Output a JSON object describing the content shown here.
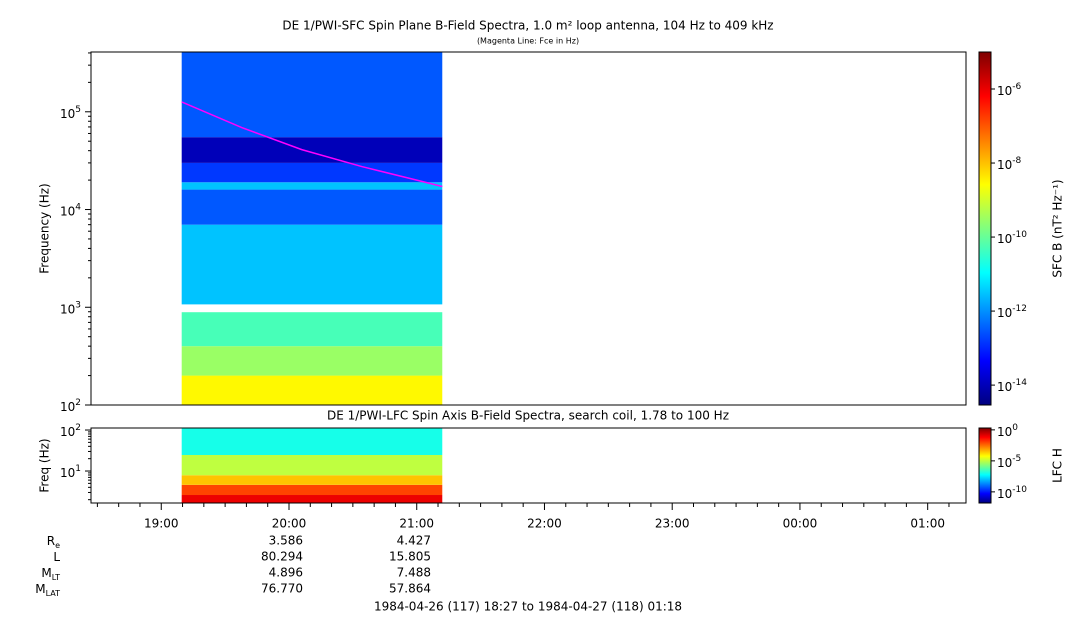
{
  "chart_data": [
    {
      "type": "spectrogram",
      "title": "DE 1/PWI-SFC  Spin Plane B-Field Spectra, 1.0 m² loop antenna, 104 Hz to 409 kHz",
      "subtitle": "(Magenta Line: Fce in Hz)",
      "ylabel": "Frequency (Hz)",
      "zlabel": "SFC B (nT² Hz⁻¹)",
      "xlim": [
        18.45,
        25.3
      ],
      "x": [
        19.16,
        21.2
      ],
      "ylim": [
        100,
        409000
      ],
      "log_y": true,
      "yticks": [
        {
          "value": 100,
          "label": "10",
          "exp": "2"
        },
        {
          "value": 1000,
          "label": "10",
          "exp": "3"
        },
        {
          "value": 10000,
          "label": "10",
          "exp": "4"
        },
        {
          "value": 100000,
          "label": "10",
          "exp": "5"
        }
      ],
      "zlim": [
        2.9e-15,
        1e-05
      ],
      "zticks": [
        {
          "value": 1e-14,
          "label": "10",
          "exp": "-14"
        },
        {
          "value": 1e-12,
          "label": "10",
          "exp": "-12"
        },
        {
          "value": 1e-10,
          "label": "10",
          "exp": "-10"
        },
        {
          "value": 1e-08,
          "label": "10",
          "exp": "-8"
        },
        {
          "value": 1e-06,
          "label": "10",
          "exp": "-6"
        }
      ],
      "bands": [
        {
          "f0": 100,
          "f1": 200,
          "z": 3e-09
        },
        {
          "f0": 200,
          "f1": 400,
          "z": 3e-10
        },
        {
          "f0": 400,
          "f1": 890,
          "z": 5e-11
        },
        {
          "f0": 1070,
          "f1": 7000,
          "z": 3e-12
        },
        {
          "f0": 7000,
          "f1": 16000,
          "z": 3e-13
        },
        {
          "f0": 16000,
          "f1": 19000,
          "z": 3e-12
        },
        {
          "f0": 19000,
          "f1": 30000,
          "z": 1.5e-13
        },
        {
          "f0": 30000,
          "f1": 55000,
          "z": 1e-14
        },
        {
          "f0": 55000,
          "f1": 409000,
          "z": 3e-13
        }
      ],
      "fce": {
        "color": "#ff00ff",
        "x": [
          19.16,
          19.63,
          20.1,
          20.57,
          21.0,
          21.2
        ],
        "values": [
          126000,
          69000,
          41000,
          27500,
          20000,
          17200
        ]
      }
    },
    {
      "type": "spectrogram",
      "title": "DE 1/PWI-LFC  Spin Axis B-Field Spectra, search coil, 1.78 to 100 Hz",
      "ylabel": "Freq (Hz)",
      "zlabel": "LFC H",
      "xlim": [
        18.45,
        25.3
      ],
      "x": [
        19.16,
        21.2
      ],
      "xticks": [
        {
          "value": 19,
          "label": "19:00"
        },
        {
          "value": 20,
          "label": "20:00"
        },
        {
          "value": 21,
          "label": "21:00"
        },
        {
          "value": 22,
          "label": "22:00"
        },
        {
          "value": 23,
          "label": "23:00"
        },
        {
          "value": 24,
          "label": "00:00"
        },
        {
          "value": 25,
          "label": "01:00"
        }
      ],
      "ylim": [
        1.66,
        112
      ],
      "log_y": true,
      "yticks": [
        {
          "value": 10,
          "label": "10",
          "exp": "1"
        },
        {
          "value": 100,
          "label": "10",
          "exp": "2"
        }
      ],
      "zlim": [
        1.6e-12,
        2
      ],
      "zticks": [
        {
          "value": 1e-10,
          "label": "10",
          "exp": "-10"
        },
        {
          "value": 1e-05,
          "label": "10",
          "exp": "-5"
        },
        {
          "value": 1,
          "label": "10",
          "exp": "0"
        }
      ],
      "bands": [
        {
          "f0": 1.66,
          "f1": 2.6,
          "z": 0.1
        },
        {
          "f0": 2.6,
          "f1": 4.6,
          "z": 0.01
        },
        {
          "f0": 4.6,
          "f1": 7.9,
          "z": 0.0003
        },
        {
          "f0": 7.9,
          "f1": 24.6,
          "z": 1e-05
        },
        {
          "f0": 24.6,
          "f1": 112,
          "z": 1e-07
        }
      ]
    }
  ],
  "ephemeris": [
    {
      "label": "R",
      "sub": "e",
      "values": [
        "3.586",
        "4.427"
      ]
    },
    {
      "label": "L",
      "sub": "",
      "values": [
        "80.294",
        "15.805"
      ]
    },
    {
      "label": "M",
      "sub": "LT",
      "values": [
        "4.896",
        "7.488"
      ]
    },
    {
      "label": "M",
      "sub": "LAT",
      "values": [
        "76.770",
        "57.864"
      ]
    }
  ],
  "footer": "1984-04-26 (117) 18:27 to 1984-04-27 (118) 01:18"
}
